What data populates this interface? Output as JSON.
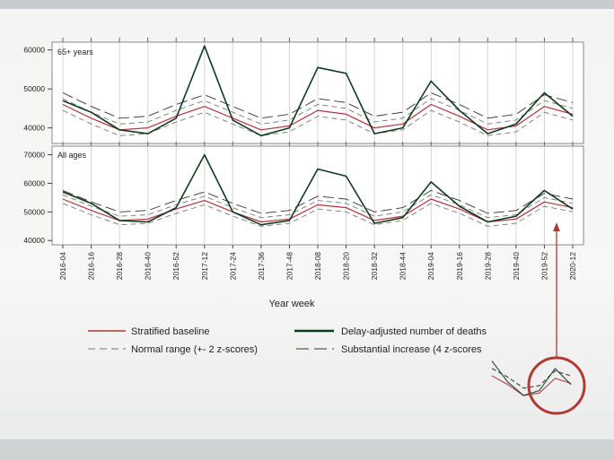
{
  "chart_data": [
    {
      "type": "line",
      "panel_label": "65+ years",
      "ylim": [
        36000,
        62000
      ],
      "yticks": [
        40000,
        50000,
        60000
      ],
      "ytick_labels": [
        "40000",
        "50000",
        "60000"
      ],
      "x": [
        "2016-04",
        "2016-16",
        "2016-28",
        "2016-40",
        "2016-52",
        "2017-12",
        "2017-24",
        "2017-36",
        "2017-48",
        "2018-08",
        "2018-20",
        "2018-32",
        "2018-44",
        "2019-04",
        "2019-16",
        "2019-28",
        "2019-40",
        "2019-52",
        "2020-12"
      ],
      "series": [
        {
          "name": "Delay-adjusted number of deaths",
          "values": [
            47000,
            44000,
            39500,
            38500,
            42500,
            61000,
            42000,
            38000,
            40000,
            55500,
            54000,
            38500,
            40000,
            52000,
            44500,
            38500,
            41000,
            49000,
            43000
          ]
        },
        {
          "name": "Stratified baseline",
          "values": [
            46000,
            42500,
            39500,
            40000,
            43000,
            45500,
            42500,
            39500,
            40500,
            44500,
            43500,
            40000,
            41000,
            46000,
            43000,
            39500,
            40500,
            45500,
            43500
          ]
        },
        {
          "name": "Normal range (+- 2 z-scores) upper",
          "values": [
            47500,
            44000,
            41000,
            41500,
            44500,
            47000,
            44000,
            41000,
            42000,
            46000,
            45000,
            41500,
            42500,
            47500,
            44500,
            41000,
            42000,
            47000,
            45000
          ]
        },
        {
          "name": "Normal range (+- 2 z-scores) lower",
          "values": [
            44500,
            41000,
            38000,
            38500,
            41500,
            44000,
            41000,
            38000,
            39000,
            43000,
            42000,
            38500,
            39500,
            44500,
            41500,
            38000,
            39000,
            44000,
            42000
          ]
        },
        {
          "name": "Substantial increase (4 z-scores)",
          "values": [
            49000,
            45500,
            42500,
            43000,
            46000,
            48500,
            45500,
            42500,
            43500,
            47500,
            46500,
            43000,
            44000,
            49000,
            46000,
            42500,
            43500,
            48500,
            46500
          ]
        }
      ]
    },
    {
      "type": "line",
      "panel_label": "All ages",
      "ylim": [
        38500,
        73000
      ],
      "yticks": [
        40000,
        50000,
        60000,
        70000
      ],
      "ytick_labels": [
        "40000",
        "50000",
        "60000",
        "70000"
      ],
      "x": [
        "2016-04",
        "2016-16",
        "2016-28",
        "2016-40",
        "2016-52",
        "2017-12",
        "2017-24",
        "2017-36",
        "2017-48",
        "2018-08",
        "2018-20",
        "2018-32",
        "2018-44",
        "2019-04",
        "2019-16",
        "2019-28",
        "2019-40",
        "2019-52",
        "2020-12"
      ],
      "series": [
        {
          "name": "Delay-adjusted number of deaths",
          "values": [
            57000,
            53000,
            47000,
            46500,
            51500,
            70000,
            50000,
            45500,
            47000,
            65000,
            62500,
            46000,
            48000,
            60500,
            52000,
            46500,
            48500,
            57500,
            51000
          ]
        },
        {
          "name": "Stratified baseline",
          "values": [
            54500,
            50500,
            47000,
            47500,
            51000,
            54000,
            50000,
            46500,
            47500,
            52500,
            51500,
            47000,
            48500,
            54500,
            51000,
            46500,
            47500,
            53500,
            51500
          ]
        },
        {
          "name": "Normal range (+- 2 z-scores) upper",
          "values": [
            56000,
            52000,
            48500,
            49000,
            52500,
            55500,
            51500,
            48000,
            49000,
            54000,
            53000,
            48500,
            50000,
            56000,
            52500,
            48000,
            49000,
            55000,
            53000
          ]
        },
        {
          "name": "Normal range (+- 2 z-scores) lower",
          "values": [
            53000,
            49000,
            45500,
            46000,
            49500,
            52500,
            48500,
            45000,
            46000,
            51000,
            50000,
            45500,
            47000,
            53000,
            49500,
            45000,
            46000,
            52000,
            50000
          ]
        },
        {
          "name": "Substantial increase (4 z-scores)",
          "values": [
            57500,
            53500,
            50000,
            50500,
            54000,
            57000,
            53000,
            49500,
            50500,
            55500,
            54500,
            50000,
            51500,
            57500,
            54000,
            49500,
            50500,
            56500,
            54500
          ]
        }
      ]
    }
  ],
  "axis": {
    "xlabel": "Year week"
  },
  "legend": {
    "items": [
      {
        "label": "Stratified baseline",
        "color": "#b5333d",
        "dash": "solid",
        "weight": "thin"
      },
      {
        "label": "Delay-adjusted number of deaths",
        "color": "#103a1e",
        "dash": "solid",
        "weight": "thick"
      },
      {
        "label": "Normal range (+- 2 z-scores)",
        "color": "#777777",
        "dash": "dashed",
        "weight": "thin"
      },
      {
        "label": "Substantial increase (4 z-scores",
        "color": "#333333",
        "dash": "solid",
        "weight": "thin"
      }
    ]
  },
  "annotation": {
    "color": "#b03a35",
    "description": "red arrow and circle highlighting recent weeks"
  },
  "colors": {
    "deaths": "#103a1e",
    "baseline": "#b5333d",
    "normal_range": "#777777",
    "substantial": "#333333",
    "grid": "#d4d4d4"
  }
}
